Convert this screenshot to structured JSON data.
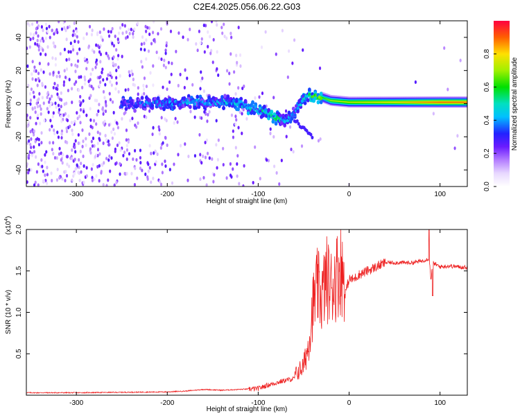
{
  "title": "C2E4.2025.056.06.22.G03",
  "colors": {
    "snr_line": "#ee2222",
    "frame": "#000000",
    "background": "#ffffff"
  },
  "chart_data": [
    {
      "type": "heatmap",
      "xlabel": "Height of straight line (km)",
      "ylabel": "Frequency (Hz)",
      "xlim": [
        -355,
        130
      ],
      "ylim": [
        -50,
        50
      ],
      "xticks": [
        -300,
        -200,
        -100,
        0,
        100
      ],
      "yticks": [
        -40,
        -20,
        0,
        20,
        40
      ],
      "colorbar": {
        "label": "Normalized spectral amplitude",
        "range": [
          0,
          1
        ],
        "ticks": [
          "0.0",
          "0.2",
          "0.4",
          "0.6",
          "0.8"
        ],
        "tick_values": [
          0,
          0.2,
          0.4,
          0.6,
          0.8
        ]
      },
      "ridge": {
        "description_points_height_km": [
          -250,
          -200,
          -150,
          -120,
          -100,
          -80,
          -70,
          -60,
          -50,
          -40,
          -30,
          -20,
          0,
          50,
          100,
          130
        ],
        "frequency_hz": [
          0,
          0,
          1,
          0,
          -4,
          -8,
          -10,
          -6,
          3,
          5,
          4,
          2,
          1,
          1,
          1,
          1
        ],
        "amplitude": [
          0.25,
          0.3,
          0.3,
          0.35,
          0.4,
          0.45,
          0.3,
          0.3,
          0.4,
          0.5,
          0.6,
          0.7,
          0.75,
          0.8,
          0.9,
          0.9
        ]
      }
    },
    {
      "type": "line",
      "xlabel": "Height of straight line (km)",
      "ylabel": "SNR (10 * v/v)",
      "y_multiplier": "(x10",
      "y_multiplier_exp": "4",
      "y_multiplier_close": ")",
      "xlim": [
        -355,
        130
      ],
      "ylim": [
        0,
        2.0
      ],
      "xticks": [
        -300,
        -200,
        -100,
        0,
        100
      ],
      "yticks": [
        "0.5",
        "1.0",
        "1.5",
        "2.0"
      ],
      "ytick_values": [
        0.5,
        1.0,
        1.5,
        2.0
      ],
      "series": [
        {
          "x": [
            -355,
            -300,
            -250,
            -200,
            -180,
            -160,
            -140,
            -120,
            -100,
            -90,
            -80,
            -70,
            -60,
            -55,
            -50,
            -45,
            -40,
            -35,
            -30,
            -25,
            -20,
            -15,
            -10,
            -5,
            0,
            5,
            10,
            20,
            30,
            40,
            50,
            60,
            70,
            80,
            88,
            90,
            92,
            95,
            100,
            110,
            120,
            130
          ],
          "y": [
            0.03,
            0.03,
            0.035,
            0.04,
            0.05,
            0.07,
            0.06,
            0.07,
            0.08,
            0.12,
            0.15,
            0.18,
            0.2,
            0.25,
            0.3,
            0.5,
            0.9,
            1.1,
            1.0,
            1.2,
            1.1,
            1.2,
            1.3,
            1.2,
            1.4,
            1.4,
            1.45,
            1.5,
            1.55,
            1.6,
            1.6,
            1.6,
            1.6,
            1.62,
            1.65,
            1.4,
            1.6,
            1.58,
            1.55,
            1.56,
            1.55,
            1.54
          ]
        }
      ]
    }
  ]
}
